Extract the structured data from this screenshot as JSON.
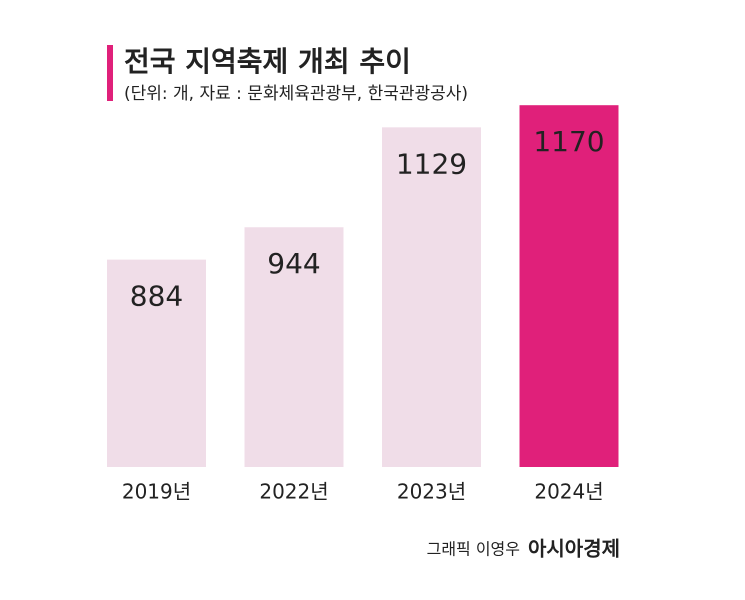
{
  "chart_data": {
    "type": "bar",
    "title": "전국 지역축제 개최 추이",
    "subtitle": "(단위: 개, 자료 : 문화체육관광부, 한국관광공사)",
    "categories": [
      "2019년",
      "2022년",
      "2023년",
      "2024년"
    ],
    "values": [
      884,
      944,
      1129,
      1170
    ],
    "colors": [
      "#f0dde8",
      "#f0dde8",
      "#f0dde8",
      "#e0207a"
    ],
    "ylim": [
      500,
      1200
    ],
    "credit": "그래픽 이영우",
    "brand": "아시아경제"
  }
}
